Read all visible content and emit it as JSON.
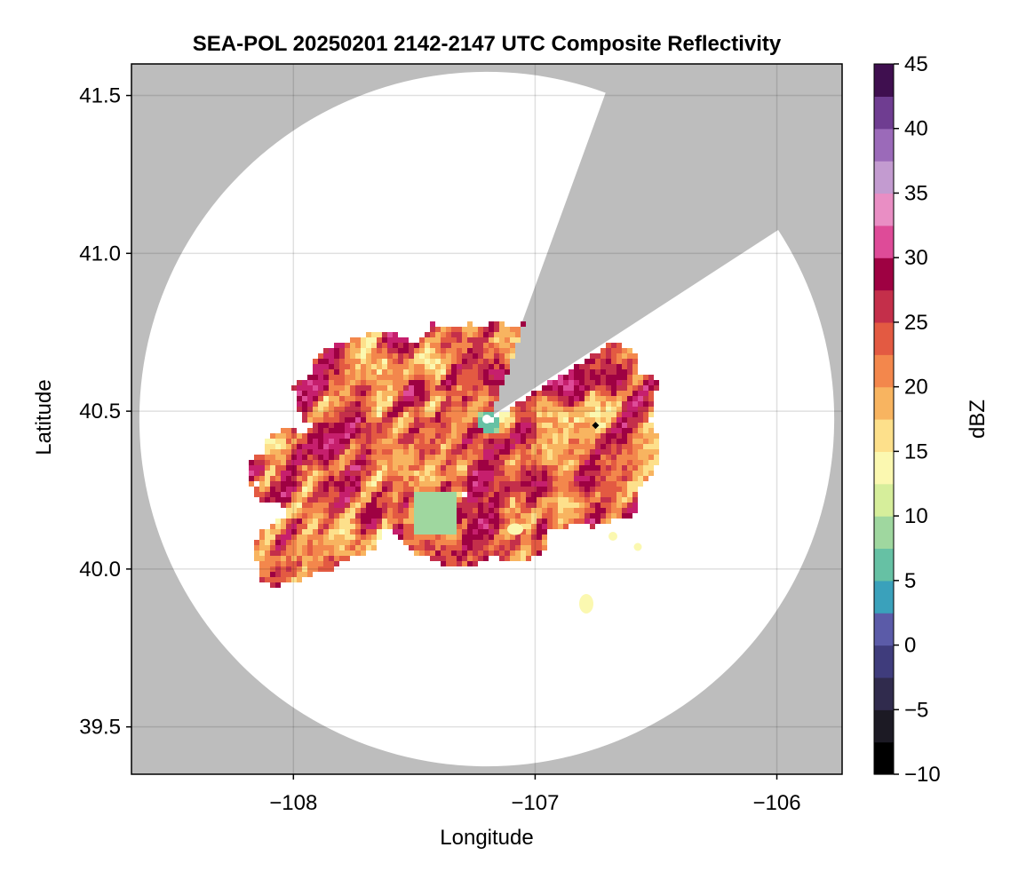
{
  "chart_data": {
    "type": "heatmap",
    "title": "SEA-POL 20250201 2142-2147 UTC Composite Reflectivity",
    "xlabel": "Longitude",
    "ylabel": "Latitude",
    "xlim": [
      -108.67,
      -105.73
    ],
    "ylim": [
      39.35,
      41.6
    ],
    "x_ticks": [
      -108,
      -107,
      -106
    ],
    "y_ticks": [
      39.5,
      40.0,
      40.5,
      41.0,
      41.5
    ],
    "x_tick_labels": [
      "−108",
      "−107",
      "−106"
    ],
    "y_tick_labels": [
      "39.5",
      "40.0",
      "40.5",
      "41.0",
      "41.5"
    ],
    "grid": true,
    "background_color": "#bdbdbd",
    "radar": {
      "center_lon": -107.2,
      "center_lat": 40.475,
      "range_lat_deg": 1.1,
      "blocked_sector_deg": [
        20,
        57
      ]
    },
    "marker": {
      "lon": -106.75,
      "lat": 40.455
    },
    "colorbar": {
      "label": "dBZ",
      "range": [
        -10,
        45
      ],
      "ticks": [
        -10,
        -5,
        0,
        5,
        10,
        15,
        20,
        25,
        30,
        35,
        40,
        45
      ],
      "tick_labels": [
        "−10",
        "−5",
        "0",
        "5",
        "10",
        "15",
        "20",
        "25",
        "30",
        "35",
        "40",
        "45"
      ],
      "step": 2.5,
      "colormap": [
        "#000000",
        "#1c1a24",
        "#302b4d",
        "#3f3c7c",
        "#5b5ba8",
        "#4f82be",
        "#3aa1bb",
        "#66c1a4",
        "#9fd79f",
        "#d6ee9b",
        "#fbf8b0",
        "#fde08b",
        "#f8b460",
        "#f3874c",
        "#e35a42",
        "#c42f4a",
        "#9e0142",
        "#c61f6d",
        "#de4b98",
        "#e98ec4",
        "#c39bd0",
        "#9b6ab9",
        "#6f3d91",
        "#3f0f4f"
      ]
    }
  }
}
